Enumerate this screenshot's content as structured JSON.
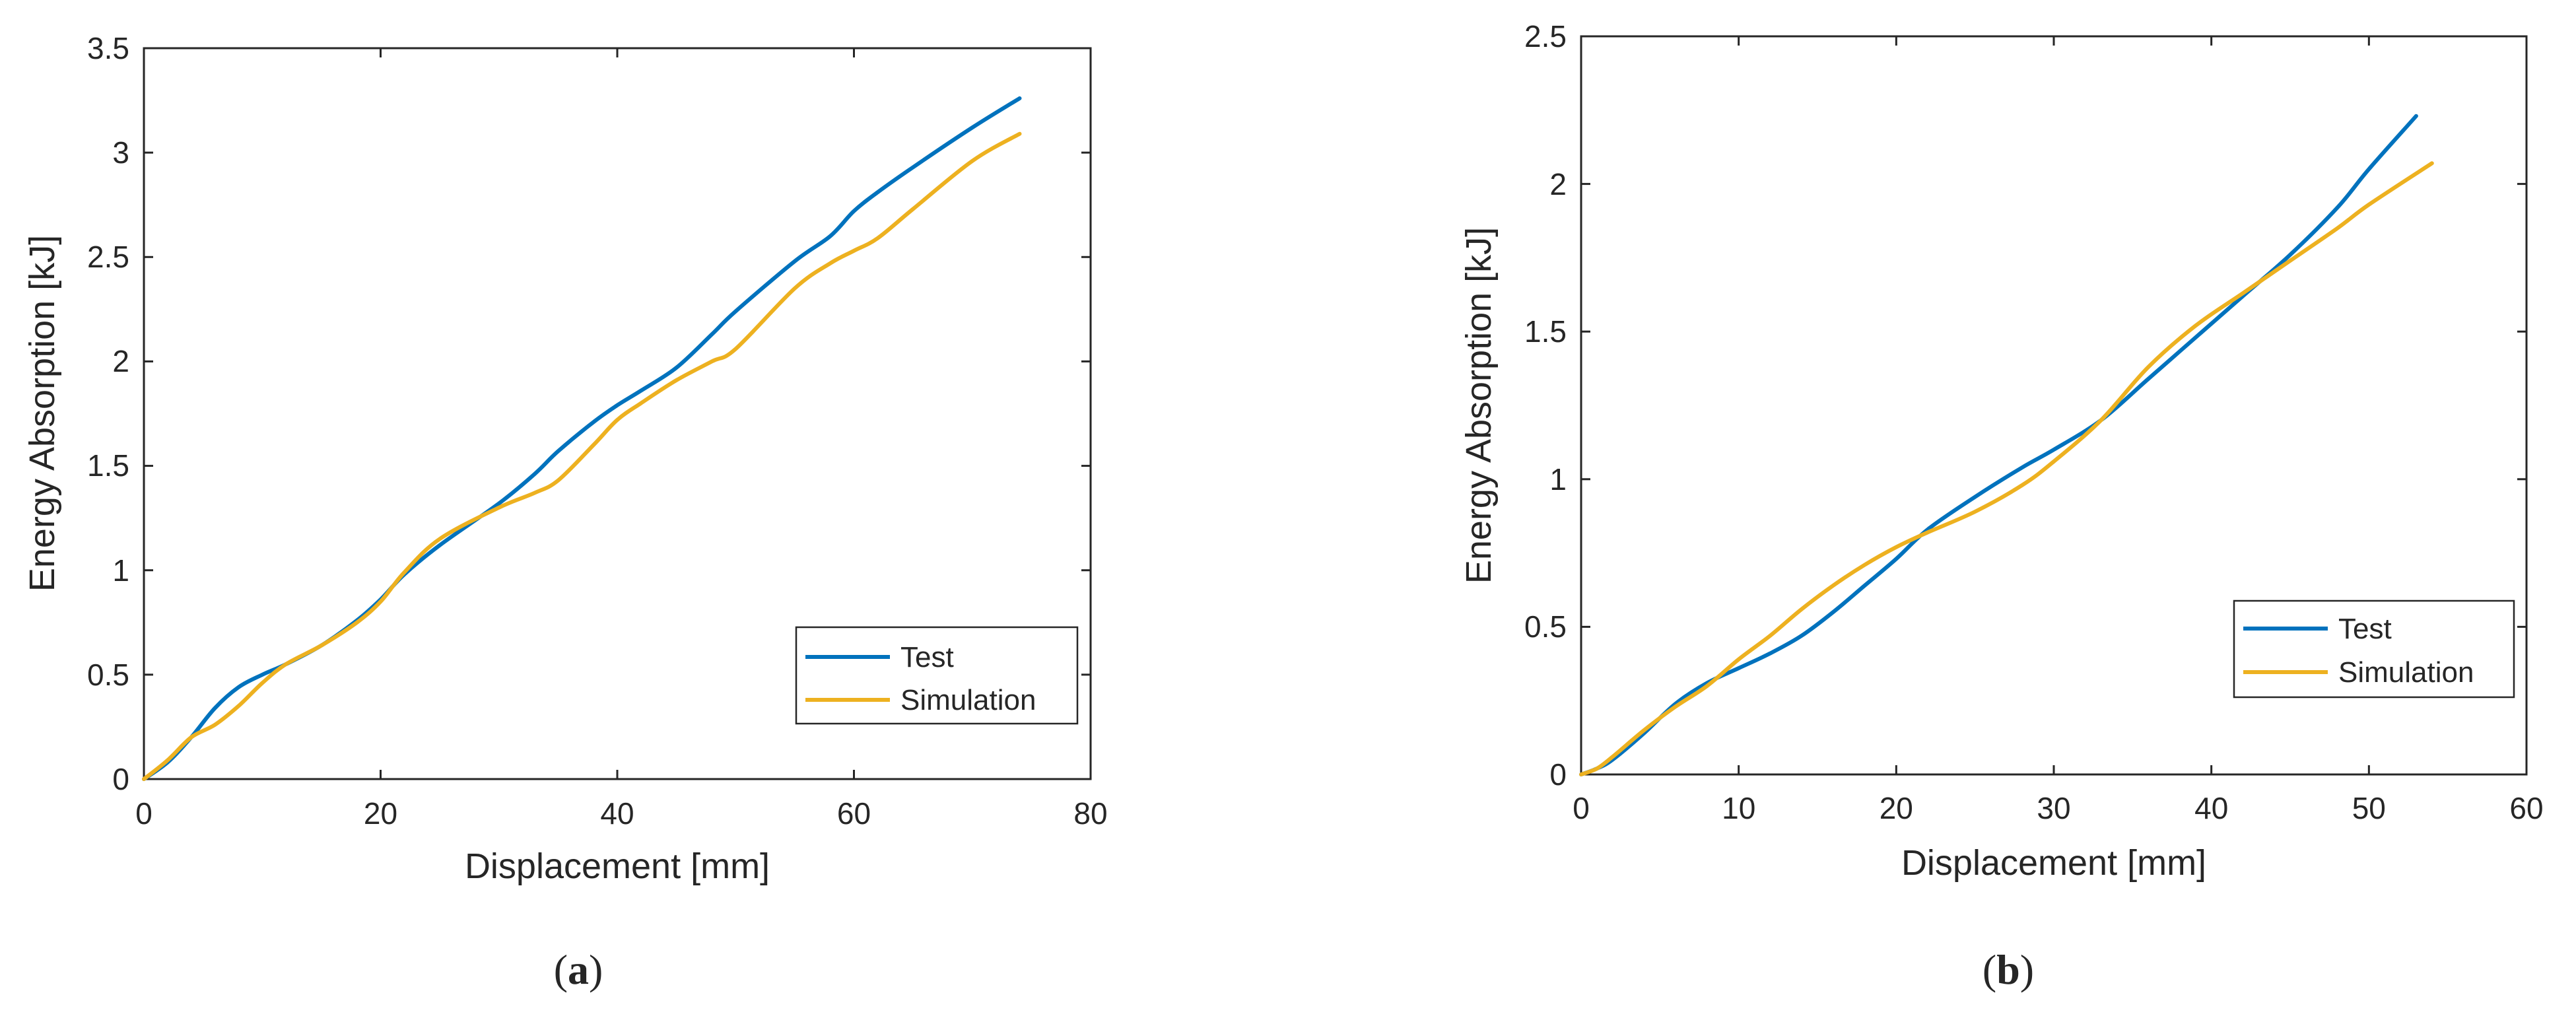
{
  "chart_data": [
    {
      "type": "line",
      "panel_label": "a",
      "xlabel": "Displacement [mm]",
      "ylabel": "Energy Absorption [kJ]",
      "xlim": [
        0,
        80
      ],
      "ylim": [
        0,
        3.5
      ],
      "xticks": [
        0,
        20,
        40,
        60,
        80
      ],
      "yticks": [
        0,
        0.5,
        1,
        1.5,
        2,
        2.5,
        3,
        3.5
      ],
      "xtick_labels": [
        "0",
        "20",
        "40",
        "60",
        "80"
      ],
      "ytick_labels": [
        "0",
        "0.5",
        "1",
        "1.5",
        "2",
        "2.5",
        "3",
        "3.5"
      ],
      "legend_position": "bottom-right",
      "grid": false,
      "series": [
        {
          "name": "Test",
          "color": "#0072BD",
          "x": [
            0,
            2,
            4,
            6,
            8,
            10,
            12,
            15,
            18,
            20,
            22,
            25,
            30,
            33,
            35,
            38,
            40,
            42,
            45,
            48,
            50,
            55,
            58,
            60,
            62,
            65,
            70,
            74
          ],
          "y": [
            0,
            0.08,
            0.2,
            0.34,
            0.44,
            0.5,
            0.55,
            0.64,
            0.76,
            0.86,
            0.98,
            1.12,
            1.32,
            1.46,
            1.57,
            1.71,
            1.79,
            1.86,
            1.97,
            2.13,
            2.24,
            2.48,
            2.6,
            2.72,
            2.81,
            2.93,
            3.12,
            3.26
          ]
        },
        {
          "name": "Simulation",
          "color": "#EDB120",
          "x": [
            0,
            2,
            4,
            6,
            8,
            10,
            12,
            15,
            18,
            20,
            22,
            25,
            30,
            33,
            35,
            38,
            40,
            42,
            45,
            48,
            50,
            55,
            58,
            60,
            62,
            65,
            70,
            74
          ],
          "y": [
            0,
            0.09,
            0.2,
            0.26,
            0.35,
            0.46,
            0.55,
            0.64,
            0.75,
            0.85,
            0.99,
            1.15,
            1.3,
            1.37,
            1.43,
            1.6,
            1.72,
            1.8,
            1.91,
            2.0,
            2.06,
            2.35,
            2.47,
            2.53,
            2.59,
            2.73,
            2.96,
            3.09
          ]
        }
      ]
    },
    {
      "type": "line",
      "panel_label": "b",
      "xlabel": "Displacement [mm]",
      "ylabel": "Energy Absorption [kJ]",
      "xlim": [
        0,
        60
      ],
      "ylim": [
        0,
        2.5
      ],
      "xticks": [
        0,
        10,
        20,
        30,
        40,
        50,
        60
      ],
      "yticks": [
        0,
        0.5,
        1,
        1.5,
        2,
        2.5
      ],
      "xtick_labels": [
        "0",
        "10",
        "20",
        "30",
        "40",
        "50",
        "60"
      ],
      "ytick_labels": [
        "0",
        "0.5",
        "1",
        "1.5",
        "2",
        "2.5"
      ],
      "legend_position": "bottom-right",
      "grid": false,
      "series": [
        {
          "name": "Test",
          "color": "#0072BD",
          "x": [
            0,
            1,
            2,
            4,
            6,
            8,
            10,
            12,
            14,
            16,
            18,
            20,
            22,
            25,
            28,
            30,
            33,
            36,
            39,
            42,
            45,
            48,
            50,
            53
          ],
          "y": [
            0,
            0.02,
            0.05,
            0.14,
            0.24,
            0.31,
            0.36,
            0.41,
            0.47,
            0.55,
            0.64,
            0.73,
            0.83,
            0.94,
            1.04,
            1.1,
            1.2,
            1.34,
            1.48,
            1.62,
            1.76,
            1.92,
            2.05,
            2.23
          ]
        },
        {
          "name": "Simulation",
          "color": "#EDB120",
          "x": [
            0,
            1,
            2,
            4,
            6,
            8,
            10,
            12,
            14,
            16,
            18,
            20,
            22,
            25,
            28,
            30,
            33,
            36,
            39,
            42,
            45,
            48,
            50,
            54
          ],
          "y": [
            0,
            0.02,
            0.06,
            0.15,
            0.23,
            0.3,
            0.39,
            0.47,
            0.56,
            0.64,
            0.71,
            0.77,
            0.82,
            0.89,
            0.98,
            1.06,
            1.2,
            1.38,
            1.52,
            1.63,
            1.74,
            1.85,
            1.93,
            2.07
          ]
        }
      ]
    }
  ]
}
